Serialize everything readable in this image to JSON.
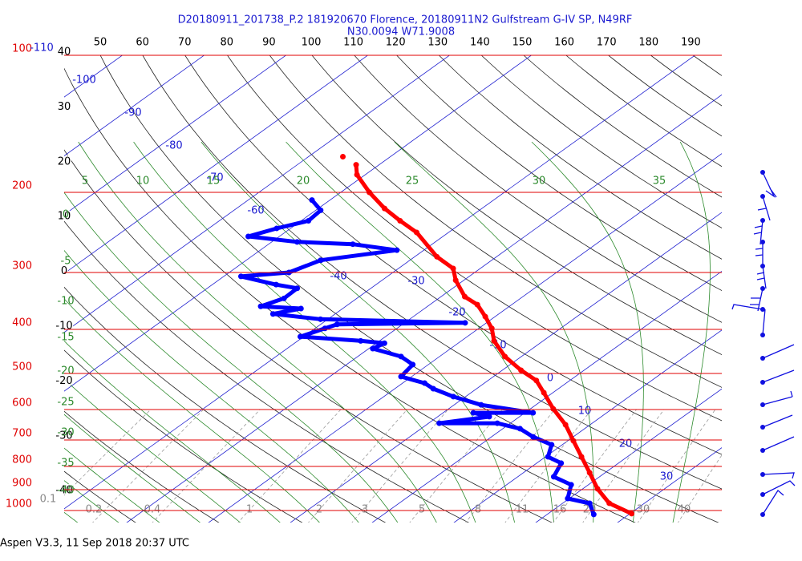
{
  "chart_data": {
    "type": "skewt",
    "title": "D20180911_201738_P.2 181920670 Florence, 20180911N2 Gulfstream G-IV SP, N49RF",
    "subtitle": "N30.0094 W71.9008",
    "footer": "Aspen V3.3, 11 Sep 2018  20:37 UTC",
    "yscale": "log",
    "ylim": [
      100,
      1000
    ],
    "yticks": [
      100,
      200,
      300,
      400,
      500,
      600,
      700,
      800,
      900,
      1000
    ],
    "top_ticks": [
      50,
      60,
      70,
      80,
      90,
      100,
      110,
      120,
      130,
      140,
      150,
      160,
      170,
      180,
      190
    ],
    "left_labels": [
      40,
      30,
      20,
      10,
      0,
      -10,
      -20,
      -30,
      -40
    ],
    "isotherm_labels": [
      -110,
      -100,
      -90,
      -80,
      -70,
      -60,
      -40,
      -30,
      -20,
      -10,
      0,
      10,
      20,
      30
    ],
    "moist_labels_top": [
      5,
      10,
      15,
      20,
      25,
      30,
      35
    ],
    "moist_labels_left": [
      0,
      -5,
      -10,
      -15,
      -20,
      -25,
      -30,
      -35,
      -40
    ],
    "mixing_ratio_labels": [
      0.1,
      0.2,
      0.4,
      1,
      2,
      3,
      5,
      8,
      11,
      16,
      20,
      30,
      40
    ],
    "series": [
      {
        "color": "#ff0000",
        "x": [
          30.2,
          25.7,
          21.8,
          18.1,
          14.4,
          10.7,
          7.0,
          2.8,
          -1.1,
          -4.1,
          -7.7,
          -12.0,
          -16.0,
          -18.4,
          -21.2,
          -24.2,
          -27.1,
          -31.0,
          -33.3,
          -37.3,
          -43.9,
          -47.9,
          -51.9,
          -56.5,
          -61.0,
          -62.8,
          null,
          -65.8
        ],
        "values": [
          1016,
          964,
          896,
          826,
          762,
          703,
          648,
          598,
          551,
          518,
          492,
          459,
          424,
          398,
          375,
          353,
          339,
          312,
          294,
          277,
          245,
          231,
          217,
          200,
          183,
          174,
          null,
          167
        ]
      },
      {
        "color": "#0000ff",
        "x": [
          25.7,
          23.3,
          19.8,
          17.9,
          14.4,
          13.0,
          10.3,
          8.7,
          5.1,
          2.1,
          -1.6,
          -8.7,
          -3.7,
          -6.3,
          1.0,
          -6.7,
          -11.5,
          -15.3,
          -17.3,
          -21.3,
          -21.9,
          -24.7,
          -29.5,
          -29.0,
          -32.3,
          -40.4,
          -38.8,
          -38.0,
          -22.6,
          -40.9,
          -47.6,
          -45.1,
          -50.4,
          -48.9,
          -49.0,
          -52.2,
          -57.9,
          -52.7,
          -50.9,
          -43.3,
          -49.7,
          -56.9,
          -63.8,
          -61.7,
          -59.1,
          -59.4,
          -62.2
        ],
        "values": [
          1020,
          964,
          941,
          878,
          843,
          787,
          762,
          717,
          689,
          661,
          643,
          643,
          622,
          610,
          610,
          586,
          562,
          540,
          525,
          508,
          478,
          459,
          441,
          429,
          424,
          415,
          398,
          390,
          387,
          380,
          370,
          360,
          356,
          342,
          325,
          319,
          306,
          300,
          282,
          268,
          260,
          257,
          250,
          240,
          231,
          219,
          208
        ]
      }
    ]
  }
}
